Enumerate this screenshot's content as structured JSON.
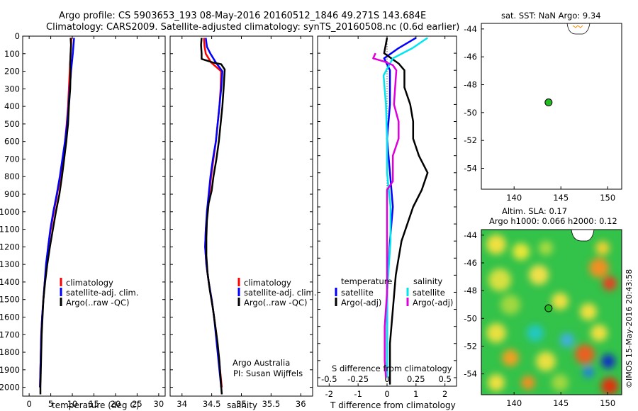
{
  "header": {
    "line1": "Argo profile: CS 5903653_193 08-May-2016 20160512_1846 49.271S 143.684E",
    "line2": "Climatology: CARS2009. Satellite-adjusted climatology: synTS_20160508.nc (0.6d earlier)"
  },
  "colors": {
    "climatology": "#ff0000",
    "satellite": "#0000ff",
    "argo": "#000000",
    "sal_satellite": "#00e5ee",
    "sal_argo": "#dd00dd"
  },
  "credit": {
    "institution": "Argo Australia",
    "pi": "PI: Susan Wijffels",
    "imos": "©IMOS 15-May-2016 20:43:58"
  },
  "chart_data": [
    {
      "id": "temperature",
      "type": "line",
      "xlabel": "temperature (deg C)",
      "ylabel": "",
      "xlim": [
        -1.5,
        31.5
      ],
      "ylim": [
        2050,
        0
      ],
      "xticks": [
        0,
        5,
        10,
        15,
        20,
        25,
        30
      ],
      "yticks": [
        0,
        100,
        200,
        300,
        400,
        500,
        600,
        700,
        800,
        900,
        1000,
        1100,
        1200,
        1300,
        1400,
        1500,
        1600,
        1700,
        1800,
        1900,
        2000
      ],
      "legend": [
        "climatology",
        "satellite-adj. clim.",
        "Argo(..raw -QC)"
      ],
      "series": [
        {
          "name": "climatology",
          "color": "#ff0000",
          "points": [
            [
              9.8,
              10
            ],
            [
              9.6,
              100
            ],
            [
              9.4,
              200
            ],
            [
              9.2,
              300
            ],
            [
              9.0,
              400
            ],
            [
              8.7,
              500
            ],
            [
              8.3,
              600
            ],
            [
              7.8,
              700
            ],
            [
              7.2,
              800
            ],
            [
              6.5,
              900
            ],
            [
              5.7,
              1000
            ],
            [
              5.0,
              1100
            ],
            [
              4.4,
              1200
            ],
            [
              4.0,
              1300
            ],
            [
              3.6,
              1400
            ],
            [
              3.3,
              1500
            ],
            [
              3.0,
              1600
            ],
            [
              2.8,
              1700
            ],
            [
              2.7,
              1800
            ],
            [
              2.6,
              1900
            ],
            [
              2.5,
              2000
            ]
          ]
        },
        {
          "name": "satellite-adj. clim.",
          "color": "#0000ff",
          "points": [
            [
              10.4,
              10
            ],
            [
              10.1,
              100
            ],
            [
              9.7,
              200
            ],
            [
              9.4,
              300
            ],
            [
              9.1,
              400
            ],
            [
              8.8,
              500
            ],
            [
              8.3,
              600
            ],
            [
              7.7,
              700
            ],
            [
              7.1,
              800
            ],
            [
              6.4,
              900
            ],
            [
              5.6,
              1000
            ],
            [
              4.9,
              1100
            ],
            [
              4.4,
              1200
            ],
            [
              3.9,
              1300
            ],
            [
              3.6,
              1400
            ],
            [
              3.3,
              1500
            ],
            [
              3.0,
              1600
            ],
            [
              2.8,
              1700
            ],
            [
              2.7,
              1800
            ],
            [
              2.6,
              1900
            ],
            [
              2.5,
              2000
            ]
          ]
        },
        {
          "name": "Argo(..raw -QC)",
          "color": "#000000",
          "points": [
            [
              9.6,
              10
            ],
            [
              9.7,
              50
            ],
            [
              9.6,
              100
            ],
            [
              9.5,
              160
            ],
            [
              9.6,
              200
            ],
            [
              9.5,
              300
            ],
            [
              9.2,
              400
            ],
            [
              9.0,
              500
            ],
            [
              8.6,
              600
            ],
            [
              8.1,
              700
            ],
            [
              7.6,
              800
            ],
            [
              7.0,
              900
            ],
            [
              6.2,
              1000
            ],
            [
              5.5,
              1100
            ],
            [
              4.8,
              1200
            ],
            [
              4.2,
              1300
            ],
            [
              3.7,
              1400
            ],
            [
              3.3,
              1500
            ],
            [
              3.1,
              1600
            ],
            [
              2.9,
              1700
            ],
            [
              2.8,
              1800
            ],
            [
              2.7,
              1900
            ],
            [
              2.6,
              2000
            ],
            [
              2.6,
              2040
            ]
          ]
        }
      ]
    },
    {
      "id": "salinity",
      "type": "line",
      "xlabel": "salinity",
      "ylabel": "",
      "xlim": [
        33.8,
        36.2
      ],
      "ylim": [
        2050,
        0
      ],
      "xticks": [
        34,
        34.5,
        35,
        35.5,
        36
      ],
      "xticklabels": [
        "34",
        "34.5",
        "35",
        "35.5",
        "36"
      ],
      "yticks": [
        0,
        100,
        200,
        300,
        400,
        500,
        600,
        700,
        800,
        900,
        1000,
        1100,
        1200,
        1300,
        1400,
        1500,
        1600,
        1700,
        1800,
        1900,
        2000
      ],
      "legend": [
        "climatology",
        "satellite-adj. clim.",
        "Argo(..raw -QC)"
      ],
      "series": [
        {
          "name": "climatology",
          "color": "#ff0000",
          "points": [
            [
              34.37,
              10
            ],
            [
              34.38,
              60
            ],
            [
              34.4,
              100
            ],
            [
              34.49,
              150
            ],
            [
              34.66,
              200
            ],
            [
              34.65,
              300
            ],
            [
              34.63,
              400
            ],
            [
              34.6,
              500
            ],
            [
              34.57,
              600
            ],
            [
              34.53,
              700
            ],
            [
              34.49,
              800
            ],
            [
              34.46,
              900
            ],
            [
              34.43,
              1000
            ],
            [
              34.4,
              1100
            ],
            [
              34.39,
              1200
            ],
            [
              34.41,
              1300
            ],
            [
              34.45,
              1400
            ],
            [
              34.5,
              1500
            ],
            [
              34.54,
              1600
            ],
            [
              34.58,
              1700
            ],
            [
              34.61,
              1800
            ],
            [
              34.64,
              1900
            ],
            [
              34.67,
              2000
            ]
          ]
        },
        {
          "name": "satellite-adj. clim.",
          "color": "#0000ff",
          "points": [
            [
              34.4,
              10
            ],
            [
              34.42,
              60
            ],
            [
              34.48,
              100
            ],
            [
              34.57,
              150
            ],
            [
              34.68,
              200
            ],
            [
              34.66,
              300
            ],
            [
              34.63,
              400
            ],
            [
              34.6,
              500
            ],
            [
              34.57,
              600
            ],
            [
              34.52,
              700
            ],
            [
              34.48,
              800
            ],
            [
              34.45,
              900
            ],
            [
              34.42,
              1000
            ],
            [
              34.4,
              1100
            ],
            [
              34.39,
              1200
            ],
            [
              34.41,
              1300
            ],
            [
              34.45,
              1400
            ],
            [
              34.5,
              1500
            ],
            [
              34.54,
              1600
            ],
            [
              34.57,
              1700
            ],
            [
              34.6,
              1800
            ],
            [
              34.63,
              1900
            ],
            [
              34.66,
              2000
            ]
          ]
        },
        {
          "name": "Argo(..raw -QC)",
          "color": "#000000",
          "points": [
            [
              34.33,
              10
            ],
            [
              34.32,
              50
            ],
            [
              34.33,
              100
            ],
            [
              34.33,
              130
            ],
            [
              34.52,
              150
            ],
            [
              34.66,
              160
            ],
            [
              34.72,
              190
            ],
            [
              34.7,
              300
            ],
            [
              34.68,
              400
            ],
            [
              34.65,
              500
            ],
            [
              34.62,
              600
            ],
            [
              34.58,
              700
            ],
            [
              34.53,
              800
            ],
            [
              34.5,
              880
            ],
            [
              34.45,
              950
            ],
            [
              34.42,
              1050
            ],
            [
              34.41,
              1150
            ],
            [
              34.41,
              1250
            ],
            [
              34.43,
              1350
            ],
            [
              34.47,
              1450
            ],
            [
              34.52,
              1550
            ],
            [
              34.56,
              1650
            ],
            [
              34.6,
              1750
            ],
            [
              34.63,
              1850
            ],
            [
              34.65,
              1950
            ],
            [
              34.67,
              2040
            ]
          ]
        }
      ]
    },
    {
      "id": "difference",
      "type": "line",
      "xlabel": "T difference from climatology",
      "x2label": "S difference from climatology",
      "xlim": [
        -2.4,
        2.4
      ],
      "ylim": [
        2050,
        0
      ],
      "xticks": [
        -2,
        -1,
        0,
        1,
        2
      ],
      "x2ticks": [
        -0.5,
        -0.25,
        0,
        0.25,
        0.5
      ],
      "x2ticklabels": [
        "-0.5",
        "-0.25",
        "0",
        "0.25",
        "0.5"
      ],
      "yticks": [
        0,
        100,
        200,
        300,
        400,
        500,
        600,
        700,
        800,
        900,
        1000,
        1100,
        1200,
        1300,
        1400,
        1500,
        1600,
        1700,
        1800,
        1900,
        2000
      ],
      "legend_temperature_title": "temperature",
      "legend_salinity_title": "salinity",
      "legend_temperature": [
        "satellite",
        "Argo(-adj)"
      ],
      "legend_salinity": [
        "satellite",
        "Argo(-adj)"
      ],
      "series": [
        {
          "name": "T satellite",
          "color": "#0000ff",
          "points": [
            [
              1.0,
              10
            ],
            [
              0.4,
              70
            ],
            [
              -0.1,
              130
            ],
            [
              0.1,
              200
            ],
            [
              0.1,
              400
            ],
            [
              0.0,
              600
            ],
            [
              0.1,
              800
            ],
            [
              0.2,
              1000
            ],
            [
              0.1,
              1200
            ],
            [
              0.0,
              1500
            ],
            [
              0.0,
              1800
            ],
            [
              0.0,
              2000
            ]
          ]
        },
        {
          "name": "T Argo(-adj)",
          "color": "#000000",
          "points": [
            [
              0.0,
              10
            ],
            [
              -0.1,
              100
            ],
            [
              0.4,
              160
            ],
            [
              0.6,
              200
            ],
            [
              0.6,
              300
            ],
            [
              0.8,
              400
            ],
            [
              0.9,
              500
            ],
            [
              0.9,
              600
            ],
            [
              1.1,
              700
            ],
            [
              1.4,
              800
            ],
            [
              1.2,
              900
            ],
            [
              0.9,
              1000
            ],
            [
              0.7,
              1100
            ],
            [
              0.5,
              1200
            ],
            [
              0.4,
              1300
            ],
            [
              0.3,
              1400
            ],
            [
              0.2,
              1600
            ],
            [
              0.1,
              1800
            ],
            [
              0.1,
              2000
            ],
            [
              0.1,
              2040
            ]
          ]
        },
        {
          "name": "S satellite",
          "color": "#00e5ee",
          "points": [
            [
              0.35,
              10
            ],
            [
              0.22,
              70
            ],
            [
              0.05,
              130
            ],
            [
              -0.03,
              230
            ],
            [
              -0.01,
              400
            ],
            [
              0.0,
              600
            ],
            [
              0.0,
              800
            ],
            [
              0.03,
              1000
            ],
            [
              0.03,
              1200
            ],
            [
              0.0,
              1500
            ],
            [
              0.0,
              1800
            ],
            [
              0.0,
              2000
            ]
          ]
        },
        {
          "name": "S Argo(-adj)",
          "color": "#dd00dd",
          "points": [
            [
              -0.1,
              100
            ],
            [
              -0.12,
              130
            ],
            [
              -0.02,
              150
            ],
            [
              0.05,
              170
            ],
            [
              0.08,
              200
            ],
            [
              0.07,
              300
            ],
            [
              0.06,
              400
            ],
            [
              0.1,
              500
            ],
            [
              0.1,
              600
            ],
            [
              0.05,
              700
            ],
            [
              0.05,
              850
            ],
            [
              0.0,
              900
            ],
            [
              0.0,
              1100
            ],
            [
              0.0,
              1300
            ],
            [
              0.0,
              1500
            ],
            [
              -0.02,
              1700
            ],
            [
              -0.02,
              1900
            ],
            [
              -0.01,
              2000
            ]
          ]
        }
      ]
    },
    {
      "id": "sst_map",
      "type": "scatter",
      "title": "sat. SST: NaN Argo: 9.34",
      "xlim": [
        136.5,
        151.5
      ],
      "ylim": [
        -55.5,
        -43.6
      ],
      "xticks": [
        140,
        145,
        150
      ],
      "yticks": [
        -44,
        -46,
        -48,
        -50,
        -52,
        -54
      ],
      "points": [
        {
          "x": 143.684,
          "y": -49.271
        }
      ]
    },
    {
      "id": "sla_map",
      "type": "heatmap",
      "title": "Altim. SLA: 0.17",
      "subtitle": "Argo h1000: 0.066 h2000: 0.12",
      "xlim": [
        136.5,
        151.5
      ],
      "ylim": [
        -55.5,
        -43.6
      ],
      "xticks": [
        140,
        145,
        150
      ],
      "yticks": [
        -44,
        -46,
        -48,
        -50,
        -52,
        -54
      ],
      "points": [
        {
          "x": 143.684,
          "y": -49.271
        }
      ]
    }
  ]
}
